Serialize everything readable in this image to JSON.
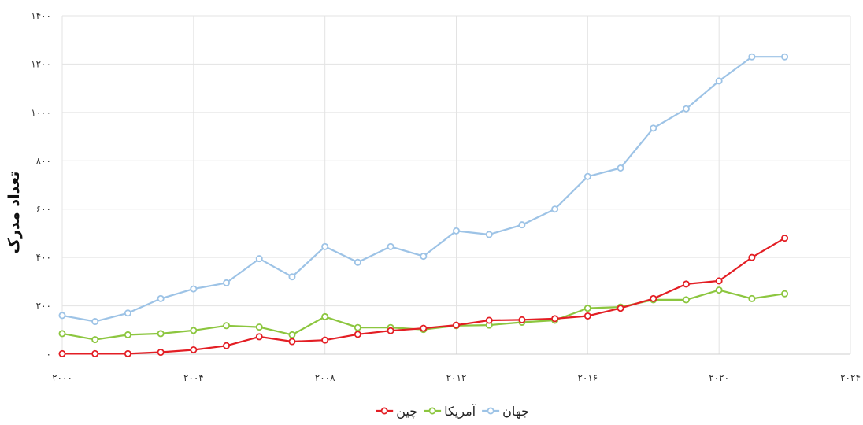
{
  "chart_data": {
    "type": "line",
    "ylabel": "تعداد مدرک",
    "xlabel": "",
    "xlim": [
      2000,
      2024
    ],
    "ylim": [
      0,
      1400
    ],
    "x_ticks": [
      2000,
      2004,
      2008,
      2012,
      2016,
      2020,
      2024
    ],
    "y_ticks": [
      0,
      200,
      400,
      600,
      800,
      1000,
      1200,
      1400
    ],
    "x_tick_labels": [
      "۲۰۰۰",
      "۲۰۰۴",
      "۲۰۰۸",
      "۲۰۱۲",
      "۲۰۱۶",
      "۲۰۲۰",
      "۲۰۲۴"
    ],
    "y_tick_labels": [
      "۰",
      "۲۰۰",
      "۴۰۰",
      "۶۰۰",
      "۸۰۰",
      "۱۰۰۰",
      "۱۲۰۰",
      "۱۴۰۰"
    ],
    "grid": true,
    "legend_position": "bottom",
    "x": [
      2000,
      2001,
      2002,
      2003,
      2004,
      2005,
      2006,
      2007,
      2008,
      2009,
      2010,
      2011,
      2012,
      2013,
      2014,
      2015,
      2016,
      2017,
      2018,
      2019,
      2020,
      2021,
      2022
    ],
    "series": [
      {
        "name": "جهان",
        "color": "#9dc3e6",
        "values": [
          160,
          135,
          170,
          230,
          270,
          295,
          395,
          320,
          445,
          380,
          445,
          405,
          510,
          495,
          535,
          600,
          735,
          770,
          935,
          1015,
          1130,
          1230,
          1230
        ]
      },
      {
        "name": "آمریکا",
        "color": "#8cc63f",
        "values": [
          85,
          60,
          80,
          85,
          98,
          118,
          112,
          80,
          155,
          110,
          110,
          102,
          118,
          120,
          132,
          140,
          190,
          195,
          225,
          225,
          265,
          230,
          250
        ]
      },
      {
        "name": "چین",
        "color": "#e31e24",
        "values": [
          2,
          2,
          2,
          8,
          18,
          35,
          72,
          52,
          58,
          82,
          97,
          107,
          120,
          140,
          142,
          147,
          158,
          190,
          230,
          290,
          303,
          400,
          480
        ]
      }
    ]
  }
}
